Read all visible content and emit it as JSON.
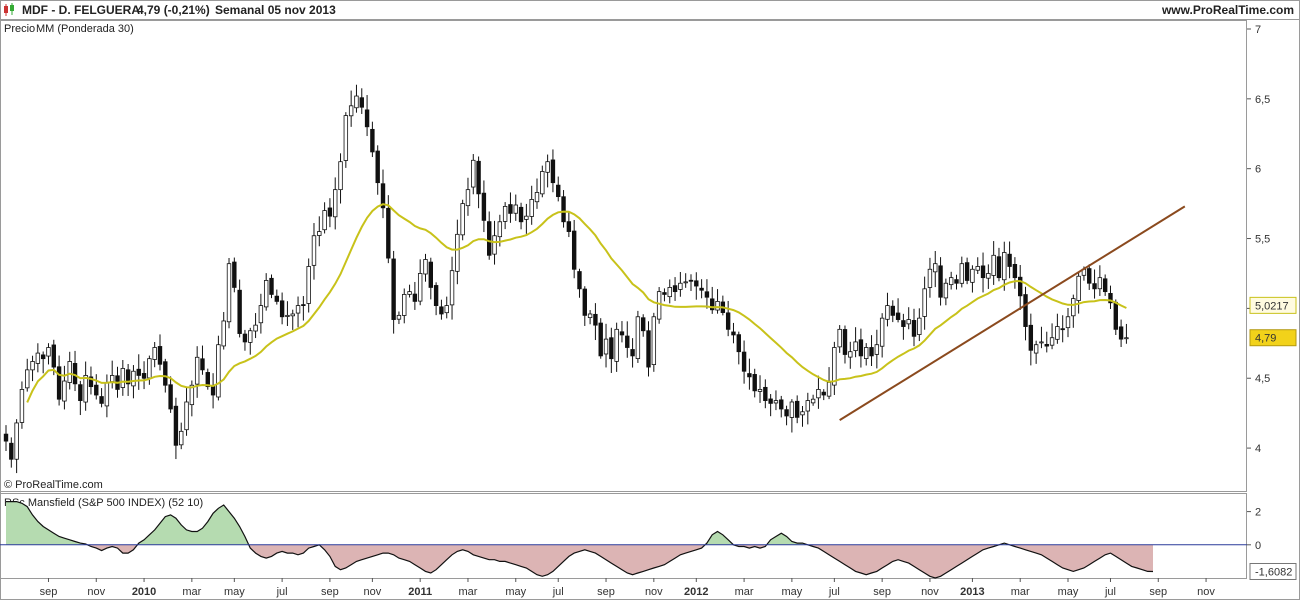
{
  "header": {
    "symbol": "MDF - D. FELGUERA",
    "quote": "4,79  (-0,21%)",
    "period": "Semanal  05 nov 2013",
    "site": "www.ProRealTime.com"
  },
  "legend": {
    "price_label": "Precio",
    "ma_label": "MM (Ponderada 30)",
    "copyright": "© ProRealTime.com",
    "rsc_title": "RSc Mansfield (S&P 500 INDEX) (52 10)"
  },
  "colors": {
    "candle": "#111111",
    "ma": "#c8c21a",
    "trend": "#8b4a1e",
    "rsc_pos": "#b5dbb0",
    "rsc_neg": "#dcb4b4",
    "zero_line": "#2a3a9a"
  },
  "chart_data": [
    {
      "type": "candlestick",
      "frequency": "weekly",
      "ylim": [
        3.7,
        7.05
      ],
      "y_ticks": [
        "7",
        "6,5",
        "6",
        "5,5",
        "5",
        "4,5",
        "4"
      ],
      "y_tick_values": [
        7,
        6.5,
        6,
        5.5,
        5,
        4.5,
        4
      ],
      "x_ticks": [
        "sep",
        "nov",
        "2010",
        "mar",
        "may",
        "jul",
        "sep",
        "nov",
        "2011",
        "mar",
        "may",
        "jul",
        "sep",
        "nov",
        "2012",
        "mar",
        "may",
        "jul",
        "sep",
        "nov",
        "2013",
        "mar",
        "may",
        "jul",
        "sep",
        "nov"
      ],
      "x_tick_weeks": [
        8,
        17,
        26,
        35,
        43,
        52,
        61,
        69,
        78,
        87,
        96,
        104,
        113,
        122,
        130,
        139,
        148,
        156,
        165,
        174,
        182,
        191,
        200,
        208,
        217,
        226
      ],
      "last_close_label": "4,79",
      "last_close": 4.79,
      "ma_value_label": "5,0217",
      "ma_value": 5.0217,
      "close": [
        4.05,
        3.92,
        4.18,
        4.42,
        4.56,
        4.62,
        4.68,
        4.64,
        4.72,
        4.58,
        4.35,
        4.48,
        4.62,
        4.46,
        4.34,
        4.52,
        4.44,
        4.38,
        4.32,
        4.47,
        4.52,
        4.42,
        4.57,
        4.46,
        4.55,
        4.52,
        4.5,
        4.64,
        4.72,
        4.6,
        4.45,
        4.28,
        4.02,
        4.12,
        4.33,
        4.45,
        4.65,
        4.56,
        4.44,
        4.38,
        4.74,
        4.91,
        5.32,
        5.15,
        4.82,
        4.76,
        4.84,
        4.88,
        5.02,
        5.2,
        5.1,
        5.05,
        4.94,
        4.95,
        4.96,
        5.02,
        5.02,
        5.3,
        5.52,
        5.55,
        5.7,
        5.66,
        5.85,
        6.05,
        6.38,
        6.45,
        6.52,
        6.44,
        6.3,
        6.12,
        5.9,
        5.72,
        5.36,
        4.92,
        4.95,
        5.1,
        5.12,
        5.05,
        5.25,
        5.35,
        5.15,
        5.02,
        4.96,
        5.02,
        5.27,
        5.53,
        5.75,
        5.85,
        6.06,
        5.82,
        5.63,
        5.38,
        5.52,
        5.62,
        5.73,
        5.68,
        5.74,
        5.62,
        5.66,
        5.78,
        5.83,
        5.98,
        6.05,
        5.9,
        5.8,
        5.62,
        5.55,
        5.28,
        5.14,
        4.95,
        4.96,
        4.88,
        4.66,
        4.78,
        4.64,
        4.85,
        4.81,
        4.72,
        4.66,
        4.94,
        4.84,
        4.58,
        4.94,
        5.12,
        5.1,
        5.15,
        5.12,
        5.18,
        5.19,
        5.2,
        5.16,
        5.13,
        5.08,
        4.99,
        5.05,
        4.97,
        4.85,
        4.81,
        4.69,
        4.55,
        4.51,
        4.41,
        4.42,
        4.34,
        4.32,
        4.34,
        4.28,
        4.23,
        4.33,
        4.22,
        4.26,
        4.34,
        4.35,
        4.42,
        4.38,
        4.47,
        4.72,
        4.85,
        4.67,
        4.69,
        4.76,
        4.66,
        4.72,
        4.66,
        4.74,
        4.93,
        5.02,
        4.95,
        4.92,
        4.87,
        4.92,
        4.8,
        4.93,
        5.14,
        5.28,
        5.32,
        5.08,
        5.18,
        5.22,
        5.18,
        5.32,
        5.2,
        5.28,
        5.3,
        5.22,
        5.25,
        5.38,
        5.22,
        5.4,
        5.3,
        5.22,
        5.09,
        4.87,
        4.7,
        4.74,
        4.76,
        4.73,
        4.79,
        4.87,
        4.85,
        4.94,
        5.07,
        5.23,
        5.28,
        5.18,
        5.14,
        5.22,
        5.12,
        5.04,
        4.85,
        4.78,
        4.79
      ],
      "series": [
        {
          "name": "MM (Ponderada 30)",
          "type": "line"
        }
      ],
      "annotations": [
        {
          "type": "trendline",
          "from": {
            "week": 157,
            "value": 4.2
          },
          "to": {
            "week": 222,
            "value": 5.73
          }
        }
      ]
    },
    {
      "type": "area",
      "title": "RSc Mansfield (S&P 500 INDEX) (52 10)",
      "ylim": [
        -2.0,
        3.0
      ],
      "y_ticks": [
        "2",
        "0"
      ],
      "y_tick_values": [
        2,
        0
      ],
      "last_value_label": "-1,6082",
      "last_value": -1.6082,
      "values": [
        2.6,
        2.6,
        2.6,
        2.5,
        2.3,
        1.8,
        1.4,
        1.1,
        0.9,
        0.7,
        0.5,
        0.4,
        0.3,
        0.2,
        0.1,
        0.05,
        -0.1,
        -0.2,
        -0.35,
        -0.2,
        -0.1,
        -0.2,
        -0.5,
        -0.5,
        -0.3,
        0.1,
        0.3,
        0.6,
        0.9,
        1.3,
        1.7,
        1.8,
        1.6,
        1.2,
        0.9,
        0.8,
        0.8,
        1.0,
        1.4,
        1.9,
        2.2,
        2.4,
        2.0,
        1.6,
        1.1,
        0.5,
        -0.2,
        -0.5,
        -0.7,
        -0.8,
        -0.7,
        -0.5,
        -0.4,
        -0.5,
        -0.5,
        -0.6,
        -0.5,
        -0.2,
        -0.1,
        0.0,
        -0.3,
        -0.7,
        -1.3,
        -1.5,
        -1.4,
        -1.2,
        -1.0,
        -0.9,
        -0.8,
        -0.7,
        -0.6,
        -0.5,
        -0.5,
        -0.6,
        -0.8,
        -0.9,
        -1.0,
        -1.2,
        -1.4,
        -1.6,
        -1.7,
        -1.5,
        -1.2,
        -0.9,
        -0.6,
        -0.4,
        -0.3,
        -0.4,
        -0.6,
        -0.7,
        -0.8,
        -0.9,
        -0.9,
        -1.0,
        -1.0,
        -1.1,
        -1.2,
        -1.3,
        -1.4,
        -1.6,
        -1.8,
        -1.9,
        -1.8,
        -1.6,
        -1.3,
        -1.0,
        -0.7,
        -0.5,
        -0.4,
        -0.3,
        -0.4,
        -0.5,
        -0.7,
        -0.9,
        -1.1,
        -1.3,
        -1.5,
        -1.7,
        -1.8,
        -1.7,
        -1.6,
        -1.5,
        -1.4,
        -1.3,
        -1.2,
        -1.0,
        -0.8,
        -0.6,
        -0.5,
        -0.4,
        -0.3,
        -0.2,
        0.1,
        0.6,
        0.8,
        0.6,
        0.3,
        0.0,
        -0.1,
        -0.1,
        -0.2,
        -0.1,
        -0.2,
        -0.1,
        0.3,
        0.5,
        0.7,
        0.5,
        0.2,
        0.1,
        0.1,
        0.0,
        -0.1,
        -0.2,
        -0.4,
        -0.6,
        -0.8,
        -1.0,
        -1.2,
        -1.4,
        -1.6,
        -1.7,
        -1.8,
        -1.7,
        -1.6,
        -1.4,
        -1.2,
        -1.0,
        -0.9,
        -1.0,
        -1.1,
        -1.3,
        -1.5,
        -1.7,
        -1.9,
        -2.0,
        -1.9,
        -1.7,
        -1.5,
        -1.3,
        -1.1,
        -0.9,
        -0.7,
        -0.5,
        -0.3,
        -0.2,
        -0.1,
        0.0,
        0.1,
        0.0,
        -0.1,
        -0.2,
        -0.3,
        -0.4,
        -0.5,
        -0.6,
        -0.8,
        -1.0,
        -1.2,
        -1.4,
        -1.5,
        -1.6,
        -1.5,
        -1.4,
        -1.2,
        -1.0,
        -0.8,
        -0.6,
        -0.5,
        -0.7,
        -0.9,
        -1.1,
        -1.3,
        -1.4,
        -1.5,
        -1.6,
        -1.6082
      ]
    }
  ]
}
